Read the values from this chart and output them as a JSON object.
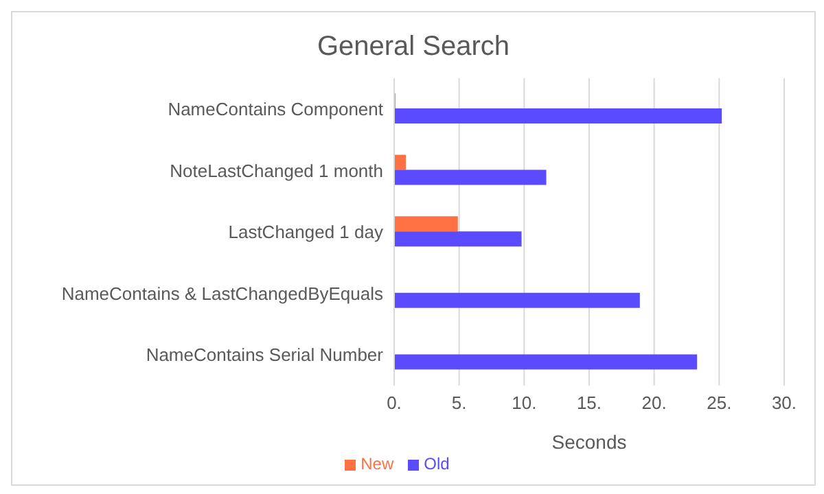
{
  "chart_data": {
    "type": "bar",
    "orientation": "horizontal",
    "title": "General Search",
    "xlabel": "Seconds",
    "categories": [
      "NameContains Component",
      "NoteLastChanged 1 month",
      "LastChanged 1 day",
      "NameContains & LastChangedByEquals",
      "NameContains Serial Number"
    ],
    "series": [
      {
        "name": "New",
        "color": "#ff7043",
        "values": [
          0.1,
          0.9,
          4.9,
          0,
          0
        ]
      },
      {
        "name": "Old",
        "color": "#5a4bff",
        "values": [
          25.2,
          11.7,
          9.8,
          18.9,
          23.3
        ]
      }
    ],
    "xlim": [
      0,
      30
    ],
    "xticks": [
      {
        "value": 0,
        "label": "0."
      },
      {
        "value": 5,
        "label": "5."
      },
      {
        "value": 10,
        "label": "10."
      },
      {
        "value": 15,
        "label": "15."
      },
      {
        "value": 20,
        "label": "20."
      },
      {
        "value": 25,
        "label": "25."
      },
      {
        "value": 30,
        "label": "30."
      }
    ],
    "grid": "x",
    "legend": "bottom"
  }
}
